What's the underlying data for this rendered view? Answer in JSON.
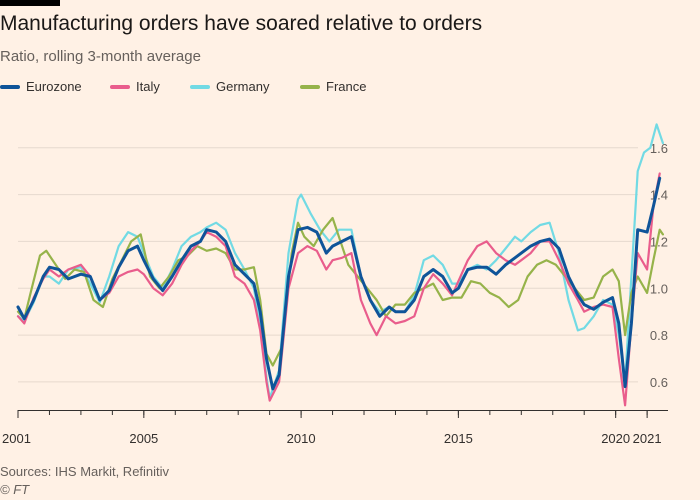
{
  "title": "Manufacturing orders have soared relative to orders",
  "subtitle": "Ratio, rolling 3-month average",
  "source": "Sources: IHS Markit, Refinitiv",
  "copyright": "© FT",
  "chart_data": {
    "type": "line",
    "xlim": [
      2001,
      2021.6
    ],
    "ylim": [
      0.48,
      1.74
    ],
    "x_ticks": [
      2001,
      2005,
      2010,
      2015,
      2020,
      2021
    ],
    "x_tick_labels": [
      "2001",
      "2005",
      "2010",
      "2015",
      "2020",
      "2021"
    ],
    "y_ticks": [
      0.6,
      0.8,
      1.0,
      1.2,
      1.4,
      1.6
    ],
    "y_tick_labels": [
      "0.6",
      "0.8",
      "1.0",
      "1.2",
      "1.4",
      "1.6"
    ],
    "grid": true,
    "legend_position": "top-left",
    "series": [
      {
        "name": "Eurozone",
        "color": "#0f5499",
        "points": [
          [
            2001.0,
            0.92
          ],
          [
            2001.2,
            0.87
          ],
          [
            2001.5,
            0.95
          ],
          [
            2001.8,
            1.05
          ],
          [
            2002.0,
            1.09
          ],
          [
            2002.3,
            1.08
          ],
          [
            2002.6,
            1.04
          ],
          [
            2003.0,
            1.06
          ],
          [
            2003.3,
            1.05
          ],
          [
            2003.6,
            0.95
          ],
          [
            2003.9,
            0.99
          ],
          [
            2004.2,
            1.09
          ],
          [
            2004.5,
            1.16
          ],
          [
            2004.8,
            1.18
          ],
          [
            2005.0,
            1.12
          ],
          [
            2005.3,
            1.04
          ],
          [
            2005.6,
            0.99
          ],
          [
            2005.9,
            1.05
          ],
          [
            2006.2,
            1.12
          ],
          [
            2006.5,
            1.18
          ],
          [
            2006.8,
            1.2
          ],
          [
            2007.0,
            1.25
          ],
          [
            2007.3,
            1.24
          ],
          [
            2007.6,
            1.2
          ],
          [
            2007.9,
            1.1
          ],
          [
            2008.2,
            1.06
          ],
          [
            2008.5,
            1.02
          ],
          [
            2008.7,
            0.9
          ],
          [
            2008.9,
            0.7
          ],
          [
            2009.1,
            0.57
          ],
          [
            2009.3,
            0.63
          ],
          [
            2009.6,
            1.05
          ],
          [
            2009.9,
            1.25
          ],
          [
            2010.2,
            1.26
          ],
          [
            2010.5,
            1.24
          ],
          [
            2010.8,
            1.15
          ],
          [
            2011.0,
            1.18
          ],
          [
            2011.3,
            1.2
          ],
          [
            2011.6,
            1.22
          ],
          [
            2011.9,
            1.05
          ],
          [
            2012.2,
            0.95
          ],
          [
            2012.5,
            0.88
          ],
          [
            2012.8,
            0.92
          ],
          [
            2013.0,
            0.9
          ],
          [
            2013.3,
            0.9
          ],
          [
            2013.6,
            0.95
          ],
          [
            2013.9,
            1.05
          ],
          [
            2014.2,
            1.08
          ],
          [
            2014.5,
            1.05
          ],
          [
            2014.8,
            0.98
          ],
          [
            2015.0,
            1.0
          ],
          [
            2015.3,
            1.08
          ],
          [
            2015.6,
            1.09
          ],
          [
            2015.9,
            1.09
          ],
          [
            2016.2,
            1.06
          ],
          [
            2016.5,
            1.1
          ],
          [
            2016.8,
            1.13
          ],
          [
            2017.0,
            1.15
          ],
          [
            2017.3,
            1.18
          ],
          [
            2017.6,
            1.2
          ],
          [
            2017.9,
            1.21
          ],
          [
            2018.2,
            1.17
          ],
          [
            2018.5,
            1.05
          ],
          [
            2018.8,
            0.97
          ],
          [
            2019.0,
            0.93
          ],
          [
            2019.3,
            0.91
          ],
          [
            2019.6,
            0.94
          ],
          [
            2019.9,
            0.96
          ],
          [
            2020.1,
            0.85
          ],
          [
            2020.3,
            0.58
          ],
          [
            2020.5,
            0.85
          ],
          [
            2020.7,
            1.25
          ],
          [
            2021.0,
            1.24
          ],
          [
            2021.2,
            1.35
          ],
          [
            2021.4,
            1.47
          ]
        ]
      },
      {
        "name": "Italy",
        "color": "#e95d8c",
        "points": [
          [
            2001.0,
            0.88
          ],
          [
            2001.2,
            0.85
          ],
          [
            2001.5,
            0.96
          ],
          [
            2001.8,
            1.04
          ],
          [
            2002.0,
            1.08
          ],
          [
            2002.3,
            1.05
          ],
          [
            2002.6,
            1.08
          ],
          [
            2003.0,
            1.1
          ],
          [
            2003.3,
            1.05
          ],
          [
            2003.6,
            0.95
          ],
          [
            2003.9,
            0.98
          ],
          [
            2004.2,
            1.05
          ],
          [
            2004.5,
            1.07
          ],
          [
            2004.8,
            1.08
          ],
          [
            2005.0,
            1.06
          ],
          [
            2005.3,
            1.0
          ],
          [
            2005.6,
            0.97
          ],
          [
            2005.9,
            1.02
          ],
          [
            2006.2,
            1.1
          ],
          [
            2006.5,
            1.16
          ],
          [
            2006.8,
            1.2
          ],
          [
            2007.0,
            1.24
          ],
          [
            2007.3,
            1.22
          ],
          [
            2007.6,
            1.18
          ],
          [
            2007.9,
            1.05
          ],
          [
            2008.2,
            1.02
          ],
          [
            2008.5,
            0.95
          ],
          [
            2008.7,
            0.82
          ],
          [
            2008.9,
            0.6
          ],
          [
            2009.0,
            0.52
          ],
          [
            2009.3,
            0.6
          ],
          [
            2009.6,
            1.0
          ],
          [
            2009.9,
            1.15
          ],
          [
            2010.2,
            1.18
          ],
          [
            2010.5,
            1.16
          ],
          [
            2010.8,
            1.08
          ],
          [
            2011.0,
            1.12
          ],
          [
            2011.3,
            1.13
          ],
          [
            2011.6,
            1.15
          ],
          [
            2011.9,
            0.95
          ],
          [
            2012.2,
            0.85
          ],
          [
            2012.4,
            0.8
          ],
          [
            2012.7,
            0.88
          ],
          [
            2013.0,
            0.85
          ],
          [
            2013.3,
            0.86
          ],
          [
            2013.6,
            0.88
          ],
          [
            2013.9,
            1.0
          ],
          [
            2014.2,
            1.06
          ],
          [
            2014.5,
            1.02
          ],
          [
            2014.8,
            0.97
          ],
          [
            2015.0,
            1.03
          ],
          [
            2015.3,
            1.12
          ],
          [
            2015.6,
            1.18
          ],
          [
            2015.9,
            1.2
          ],
          [
            2016.2,
            1.15
          ],
          [
            2016.5,
            1.12
          ],
          [
            2016.8,
            1.1
          ],
          [
            2017.0,
            1.12
          ],
          [
            2017.3,
            1.15
          ],
          [
            2017.6,
            1.2
          ],
          [
            2017.9,
            1.2
          ],
          [
            2018.2,
            1.12
          ],
          [
            2018.5,
            1.02
          ],
          [
            2018.8,
            0.95
          ],
          [
            2019.0,
            0.9
          ],
          [
            2019.3,
            0.92
          ],
          [
            2019.6,
            0.93
          ],
          [
            2019.9,
            0.92
          ],
          [
            2020.1,
            0.7
          ],
          [
            2020.3,
            0.5
          ],
          [
            2020.5,
            0.85
          ],
          [
            2020.7,
            1.15
          ],
          [
            2021.0,
            1.08
          ],
          [
            2021.2,
            1.35
          ],
          [
            2021.4,
            1.49
          ]
        ]
      },
      {
        "name": "Germany",
        "color": "#72dae4",
        "points": [
          [
            2001.0,
            0.88
          ],
          [
            2001.2,
            0.86
          ],
          [
            2001.5,
            0.94
          ],
          [
            2001.8,
            1.05
          ],
          [
            2002.0,
            1.05
          ],
          [
            2002.3,
            1.02
          ],
          [
            2002.6,
            1.08
          ],
          [
            2003.0,
            1.09
          ],
          [
            2003.3,
            1.02
          ],
          [
            2003.6,
            0.94
          ],
          [
            2003.9,
            1.05
          ],
          [
            2004.2,
            1.18
          ],
          [
            2004.5,
            1.24
          ],
          [
            2004.8,
            1.22
          ],
          [
            2005.0,
            1.15
          ],
          [
            2005.3,
            1.05
          ],
          [
            2005.6,
            1.0
          ],
          [
            2005.9,
            1.08
          ],
          [
            2006.2,
            1.18
          ],
          [
            2006.5,
            1.22
          ],
          [
            2006.8,
            1.24
          ],
          [
            2007.0,
            1.26
          ],
          [
            2007.3,
            1.28
          ],
          [
            2007.6,
            1.25
          ],
          [
            2007.9,
            1.15
          ],
          [
            2008.2,
            1.08
          ],
          [
            2008.5,
            1.0
          ],
          [
            2008.7,
            0.85
          ],
          [
            2008.9,
            0.62
          ],
          [
            2009.0,
            0.53
          ],
          [
            2009.3,
            0.65
          ],
          [
            2009.6,
            1.15
          ],
          [
            2009.9,
            1.38
          ],
          [
            2010.0,
            1.4
          ],
          [
            2010.3,
            1.32
          ],
          [
            2010.6,
            1.25
          ],
          [
            2010.9,
            1.2
          ],
          [
            2011.2,
            1.25
          ],
          [
            2011.6,
            1.25
          ],
          [
            2011.9,
            1.05
          ],
          [
            2012.2,
            0.95
          ],
          [
            2012.5,
            0.9
          ],
          [
            2012.8,
            0.92
          ],
          [
            2013.0,
            0.9
          ],
          [
            2013.3,
            0.9
          ],
          [
            2013.6,
            0.97
          ],
          [
            2013.9,
            1.12
          ],
          [
            2014.2,
            1.14
          ],
          [
            2014.5,
            1.1
          ],
          [
            2014.8,
            1.02
          ],
          [
            2015.0,
            1.02
          ],
          [
            2015.3,
            1.08
          ],
          [
            2015.6,
            1.1
          ],
          [
            2015.9,
            1.08
          ],
          [
            2016.2,
            1.12
          ],
          [
            2016.5,
            1.17
          ],
          [
            2016.8,
            1.22
          ],
          [
            2017.0,
            1.2
          ],
          [
            2017.3,
            1.24
          ],
          [
            2017.6,
            1.27
          ],
          [
            2017.9,
            1.28
          ],
          [
            2018.2,
            1.15
          ],
          [
            2018.5,
            0.95
          ],
          [
            2018.8,
            0.82
          ],
          [
            2019.0,
            0.83
          ],
          [
            2019.3,
            0.88
          ],
          [
            2019.6,
            0.95
          ],
          [
            2019.9,
            0.93
          ],
          [
            2020.1,
            0.8
          ],
          [
            2020.3,
            0.6
          ],
          [
            2020.5,
            1.05
          ],
          [
            2020.7,
            1.5
          ],
          [
            2020.9,
            1.58
          ],
          [
            2021.1,
            1.6
          ],
          [
            2021.3,
            1.7
          ],
          [
            2021.5,
            1.62
          ]
        ]
      },
      {
        "name": "France",
        "color": "#96b34a",
        "points": [
          [
            2001.0,
            0.9
          ],
          [
            2001.2,
            0.87
          ],
          [
            2001.4,
            0.98
          ],
          [
            2001.7,
            1.14
          ],
          [
            2001.9,
            1.16
          ],
          [
            2002.2,
            1.1
          ],
          [
            2002.5,
            1.04
          ],
          [
            2002.8,
            1.08
          ],
          [
            2003.1,
            1.07
          ],
          [
            2003.4,
            0.95
          ],
          [
            2003.7,
            0.92
          ],
          [
            2004.0,
            1.04
          ],
          [
            2004.3,
            1.12
          ],
          [
            2004.6,
            1.2
          ],
          [
            2004.9,
            1.23
          ],
          [
            2005.2,
            1.05
          ],
          [
            2005.5,
            1.0
          ],
          [
            2005.8,
            1.05
          ],
          [
            2006.1,
            1.12
          ],
          [
            2006.4,
            1.14
          ],
          [
            2006.7,
            1.18
          ],
          [
            2007.0,
            1.16
          ],
          [
            2007.3,
            1.17
          ],
          [
            2007.6,
            1.15
          ],
          [
            2007.9,
            1.08
          ],
          [
            2008.2,
            1.08
          ],
          [
            2008.5,
            1.09
          ],
          [
            2008.7,
            0.95
          ],
          [
            2008.9,
            0.72
          ],
          [
            2009.1,
            0.67
          ],
          [
            2009.4,
            0.75
          ],
          [
            2009.7,
            1.15
          ],
          [
            2009.9,
            1.28
          ],
          [
            2010.1,
            1.22
          ],
          [
            2010.4,
            1.18
          ],
          [
            2010.7,
            1.25
          ],
          [
            2011.0,
            1.3
          ],
          [
            2011.2,
            1.22
          ],
          [
            2011.5,
            1.1
          ],
          [
            2011.8,
            1.05
          ],
          [
            2012.1,
            1.0
          ],
          [
            2012.4,
            0.95
          ],
          [
            2012.7,
            0.88
          ],
          [
            2013.0,
            0.93
          ],
          [
            2013.3,
            0.93
          ],
          [
            2013.6,
            0.98
          ],
          [
            2013.9,
            1.0
          ],
          [
            2014.2,
            1.02
          ],
          [
            2014.5,
            0.95
          ],
          [
            2014.8,
            0.96
          ],
          [
            2015.1,
            0.96
          ],
          [
            2015.4,
            1.03
          ],
          [
            2015.7,
            1.02
          ],
          [
            2016.0,
            0.98
          ],
          [
            2016.3,
            0.96
          ],
          [
            2016.6,
            0.92
          ],
          [
            2016.9,
            0.95
          ],
          [
            2017.2,
            1.05
          ],
          [
            2017.5,
            1.1
          ],
          [
            2017.8,
            1.12
          ],
          [
            2018.1,
            1.1
          ],
          [
            2018.4,
            1.05
          ],
          [
            2018.7,
            1.0
          ],
          [
            2019.0,
            0.95
          ],
          [
            2019.3,
            0.96
          ],
          [
            2019.6,
            1.05
          ],
          [
            2019.9,
            1.08
          ],
          [
            2020.1,
            1.03
          ],
          [
            2020.3,
            0.8
          ],
          [
            2020.5,
            0.98
          ],
          [
            2020.7,
            1.05
          ],
          [
            2021.0,
            0.98
          ],
          [
            2021.2,
            1.12
          ],
          [
            2021.4,
            1.25
          ],
          [
            2021.5,
            1.23
          ]
        ]
      }
    ]
  }
}
